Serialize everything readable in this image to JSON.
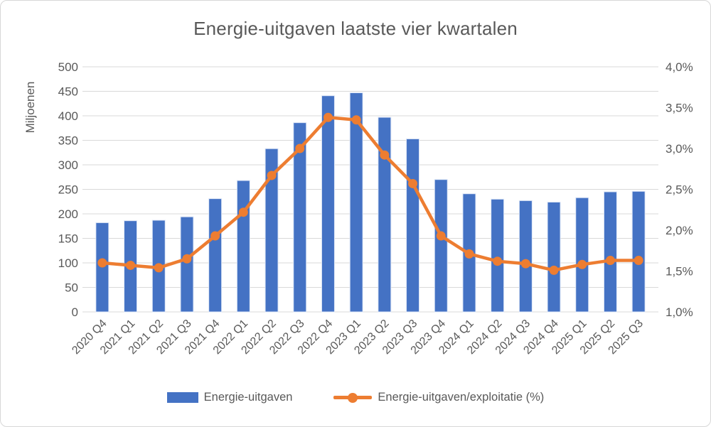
{
  "chart_data": {
    "type": "combo-bar-line",
    "title": "Energie-uitgaven laatste vier kwartalen",
    "categories": [
      "2020 Q4",
      "2021 Q1",
      "2021 Q2",
      "2021 Q3",
      "2021 Q4",
      "2022 Q1",
      "2022 Q2",
      "2022 Q3",
      "2022 Q4",
      "2023 Q1",
      "2023 Q2",
      "2023 Q3",
      "2023 Q4",
      "2024 Q1",
      "2024 Q2",
      "2024 Q3",
      "2024 Q4",
      "2025 Q1",
      "2025 Q2",
      "2025 Q3"
    ],
    "series": [
      {
        "name": "Energie-uitgaven",
        "type": "bar",
        "axis": "left",
        "color": "#4472C4",
        "values": [
          182,
          186,
          187,
          194,
          231,
          268,
          333,
          386,
          441,
          447,
          397,
          353,
          270,
          241,
          230,
          227,
          224,
          233,
          245,
          246
        ]
      },
      {
        "name": "Energie-uitgaven/exploitatie (%)",
        "type": "line",
        "axis": "right",
        "color": "#ED7D31",
        "values": [
          1.6,
          1.57,
          1.54,
          1.65,
          1.93,
          2.22,
          2.67,
          3.0,
          3.38,
          3.35,
          2.92,
          2.57,
          1.93,
          1.71,
          1.62,
          1.59,
          1.51,
          1.58,
          1.63,
          1.63
        ]
      }
    ],
    "left_axis": {
      "label": "Miljoenen",
      "min": 0,
      "max": 500,
      "step": 50,
      "tick_labels": [
        "0",
        "50",
        "100",
        "150",
        "200",
        "250",
        "300",
        "350",
        "400",
        "450",
        "500"
      ]
    },
    "right_axis": {
      "min": 1.0,
      "max": 4.0,
      "step": 0.5,
      "tick_labels": [
        "1,0%",
        "1,5%",
        "2,0%",
        "2,5%",
        "3,0%",
        "3,5%",
        "4,0%"
      ]
    },
    "grid": true,
    "legend_position": "bottom",
    "colors": {
      "grid": "#D9D9D9",
      "text": "#595959",
      "bar_border": "#DEE7F7",
      "background": "#FFFFFF",
      "frame_border": "#D7D7D7"
    }
  }
}
